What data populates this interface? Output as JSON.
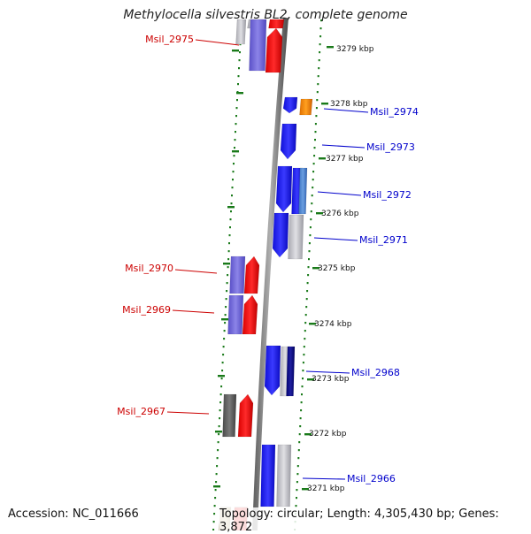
{
  "title": "Methylocella silvestris BL2, complete genome",
  "footer": {
    "accession": "Accession: NC_011666",
    "summary": "Topology: circular; Length: 4,305,430 bp; Genes: 3,872"
  },
  "colors": {
    "forward_label": "#cc0000",
    "reverse_label": "#0000cc",
    "tick_green": "#1a7a1a",
    "backbone": "#888888"
  },
  "kbp_ticks": [
    "3279 kbp",
    "3278 kbp",
    "3277 kbp",
    "3276 kbp",
    "3275 kbp",
    "3274 kbp",
    "3273 kbp",
    "3272 kbp",
    "3271 kbp"
  ],
  "gene_labels": [
    {
      "text": "Msil_2975",
      "strand": "forward"
    },
    {
      "text": "Msil_2974",
      "strand": "reverse"
    },
    {
      "text": "Msil_2973",
      "strand": "reverse"
    },
    {
      "text": "Msil_2972",
      "strand": "reverse"
    },
    {
      "text": "Msil_2971",
      "strand": "reverse"
    },
    {
      "text": "Msil_2970",
      "strand": "forward"
    },
    {
      "text": "Msil_2969",
      "strand": "forward"
    },
    {
      "text": "Msil_2968",
      "strand": "reverse"
    },
    {
      "text": "Msil_2967",
      "strand": "forward"
    },
    {
      "text": "Msil_2966",
      "strand": "reverse"
    }
  ]
}
